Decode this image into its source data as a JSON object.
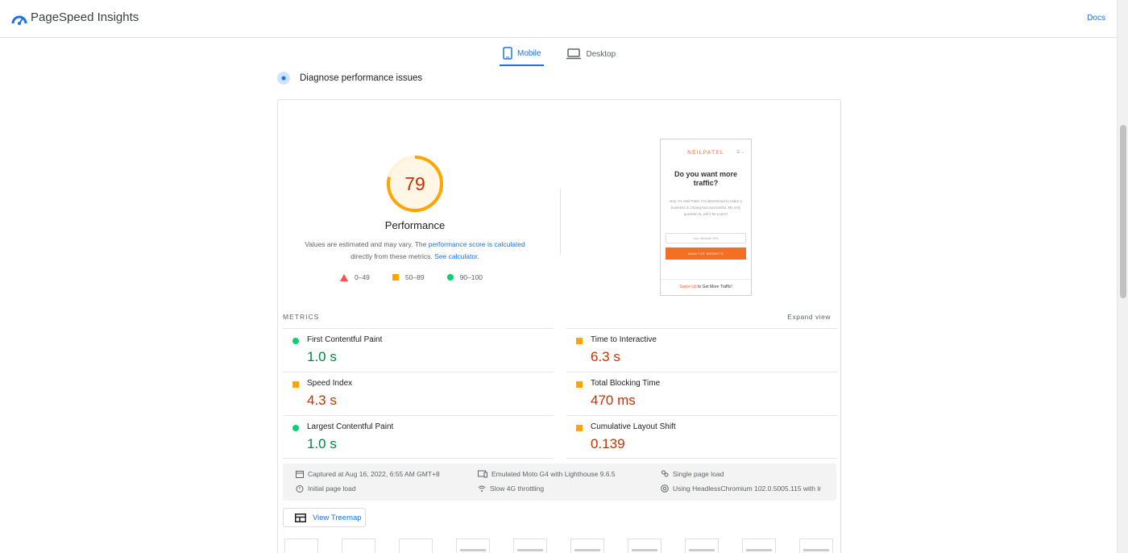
{
  "app": {
    "title": "PageSpeed Insights",
    "docs": "Docs"
  },
  "tabs": [
    {
      "label": "Mobile",
      "active": true
    },
    {
      "label": "Desktop",
      "active": false
    }
  ],
  "diagnose": {
    "heading": "Diagnose performance issues"
  },
  "score": {
    "value": "79",
    "fraction": 0.79,
    "label": "Performance",
    "note_1": "Values are estimated and may vary. The ",
    "note_link_1": "performance score is calculated",
    "note_2": "directly from these metrics. ",
    "note_link_2": "See calculator."
  },
  "legend": [
    {
      "shape": "triangle",
      "label": "0–49",
      "color": "#ff4e42"
    },
    {
      "shape": "square",
      "label": "50–89",
      "color": "#ffa400"
    },
    {
      "shape": "circle",
      "label": "90–100",
      "color": "#0cce6b"
    }
  ],
  "preview": {
    "brand": "NEILPATEL",
    "headline": "Do you want more traffic?",
    "body": "Hey, I'm Neil Patel. I'm determined to make a business in Chang-hua successful. My only question is, will it be yours?",
    "input_placeholder": "Your Website URL",
    "button": "ANALYZE WEBSITE",
    "bar_link": "Swipe Up",
    "bar_text": " to Get More Traffic!"
  },
  "metrics": {
    "title": "METRICS",
    "expand": "Expand view",
    "left": [
      {
        "name": "First Contentful Paint",
        "value": "1.0 s",
        "status": "good"
      },
      {
        "name": "Speed Index",
        "value": "4.3 s",
        "status": "average"
      },
      {
        "name": "Largest Contentful Paint",
        "value": "1.0 s",
        "status": "good"
      }
    ],
    "right": [
      {
        "name": "Time to Interactive",
        "value": "6.3 s",
        "status": "average"
      },
      {
        "name": "Total Blocking Time",
        "value": "470 ms",
        "status": "average"
      },
      {
        "name": "Cumulative Layout Shift",
        "value": "0.139",
        "status": "average"
      }
    ]
  },
  "info": {
    "captured": "Captured at Aug 16, 2022, 6:55 AM GMT+8",
    "initial": "Initial page load",
    "emulated": "Emulated Moto G4 with Lighthouse 9.6.5",
    "throttling": "Slow 4G throttling",
    "single": "Single page load",
    "using": "Using HeadlessChromium 102.0.5005.115 with lr"
  },
  "treemap": {
    "label": "View Treemap"
  },
  "colors": {
    "accent": "#1a73e8",
    "good": "#0cce6b",
    "average": "#ffa400",
    "poor": "#ff4e42",
    "good_text": "#018642",
    "average_text": "#c33300"
  }
}
